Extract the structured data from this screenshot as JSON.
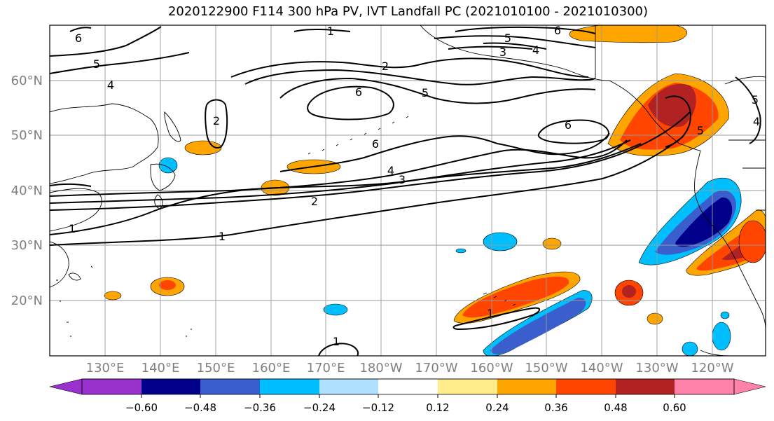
{
  "title": "2020122900 F114 300 hPa PV, IVT Landfall PC (2021010100 - 2021010300)",
  "map": {
    "lat_labels": [
      "60°N",
      "50°N",
      "40°N",
      "30°N",
      "20°N"
    ],
    "lon_labels": [
      "130°E",
      "140°E",
      "150°E",
      "160°E",
      "170°E",
      "180°W",
      "170°W",
      "160°W",
      "150°W",
      "140°W",
      "130°W",
      "120°W"
    ],
    "pv_contour_labels": [
      "6",
      "5",
      "1",
      "5",
      "4",
      "3",
      "4",
      "6",
      "2",
      "5",
      "6",
      "6",
      "2",
      "6",
      "4",
      "3",
      "2",
      "1",
      "1",
      "1",
      "1",
      "5",
      "4",
      "5"
    ],
    "shading_colors": {
      "neg_060": "#9932cc",
      "neg_048": "#00008b",
      "neg_036": "#3a5fcd",
      "neg_024": "#00bfff",
      "neg_012": "#b0e2ff",
      "pos_012": "#ffec8b",
      "pos_024": "#ffa500",
      "pos_036": "#ff4500",
      "pos_048": "#b22222",
      "pos_060": "#ff82ab"
    }
  },
  "colorbar": {
    "tick_labels": [
      "−0.60",
      "−0.48",
      "−0.36",
      "−0.24",
      "−0.12",
      "0.12",
      "0.24",
      "0.36",
      "0.48",
      "0.60"
    ],
    "colors": [
      "#9932cc",
      "#00008b",
      "#3a5fcd",
      "#00bfff",
      "#b0e2ff",
      "#ffffff",
      "#ffec8b",
      "#ffa500",
      "#ff4500",
      "#b22222",
      "#ff82ab"
    ]
  }
}
